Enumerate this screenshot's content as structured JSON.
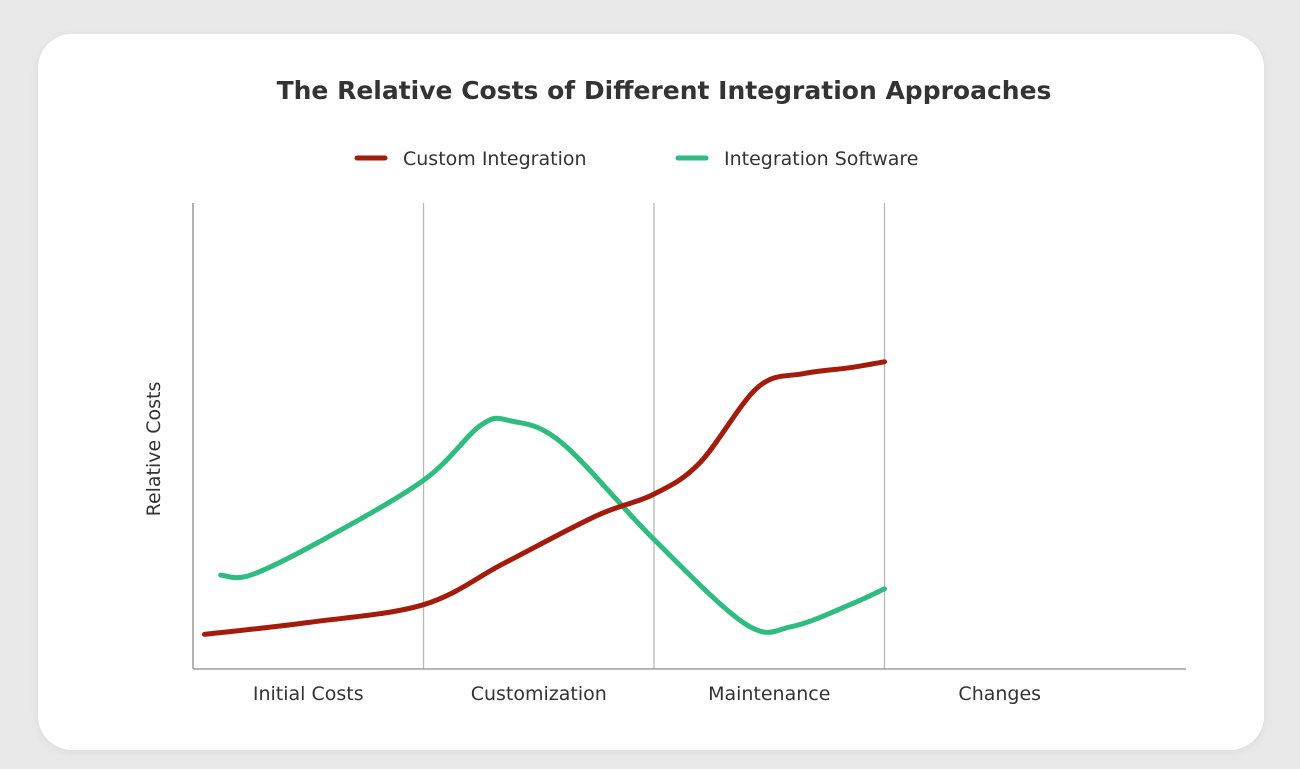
{
  "chart_data": {
    "type": "line",
    "title": "The Relative Costs of Different Integration Approaches",
    "xlabel": "",
    "ylabel": "Relative Costs",
    "categories": [
      "Initial Costs",
      "Customization",
      "Maintenance",
      "Changes"
    ],
    "xlim": [
      0,
      4
    ],
    "ylim": [
      0,
      10
    ],
    "grid": "vertical separators between categories",
    "legend_position": "top-center",
    "series": [
      {
        "name": "Custom Integration",
        "color": "#a51b0b",
        "x": [
          0.05,
          0.5,
          1.0,
          1.35,
          1.75,
          2.0,
          2.2,
          2.45,
          2.65,
          2.85,
          3.0
        ],
        "y": [
          0.65,
          0.95,
          1.4,
          2.45,
          3.65,
          4.2,
          5.0,
          6.9,
          7.25,
          7.4,
          7.55
        ]
      },
      {
        "name": "Integration Software",
        "color": "#2ebd7e",
        "x": [
          0.12,
          0.25,
          0.55,
          1.0,
          1.25,
          1.38,
          1.6,
          2.0,
          2.4,
          2.6,
          2.85,
          3.0
        ],
        "y": [
          2.15,
          2.15,
          3.0,
          4.55,
          5.95,
          6.05,
          5.5,
          3.05,
          0.9,
          0.85,
          1.4,
          1.8
        ]
      }
    ]
  }
}
